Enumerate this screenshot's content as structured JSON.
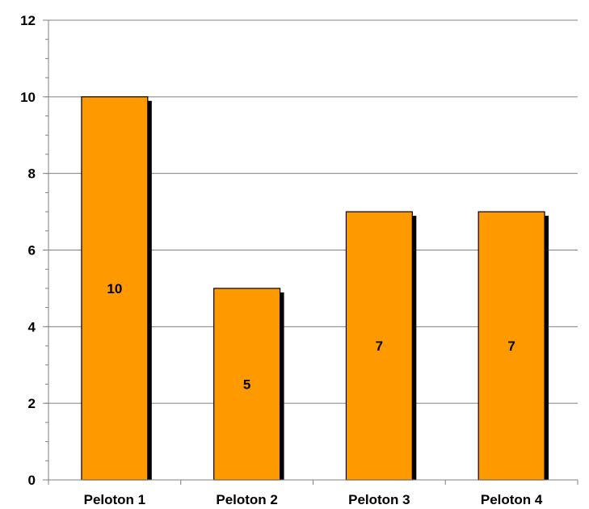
{
  "chart_data": {
    "type": "bar",
    "title": "",
    "xlabel": "",
    "ylabel": "",
    "categories": [
      "Peloton 1",
      "Peloton 2",
      "Peloton 3",
      "Peloton 4"
    ],
    "values": [
      10,
      5,
      7,
      7
    ],
    "data_labels": [
      "10",
      "5",
      "7",
      "7"
    ],
    "ylim": [
      0,
      12
    ],
    "y_ticks": [
      0,
      2,
      4,
      6,
      8,
      10,
      12
    ],
    "y_tick_labels": [
      "0",
      "2",
      "4",
      "6",
      "8",
      "10",
      "12"
    ],
    "minor_tick_step": 0.5,
    "grid": true,
    "legend": "none",
    "colors": {
      "bar_fill": "#FF9900",
      "bar_stroke": "#000000",
      "bar_shadow": "#000000",
      "gridline": "#808080",
      "axis": "#808080",
      "text": "#000000"
    }
  }
}
